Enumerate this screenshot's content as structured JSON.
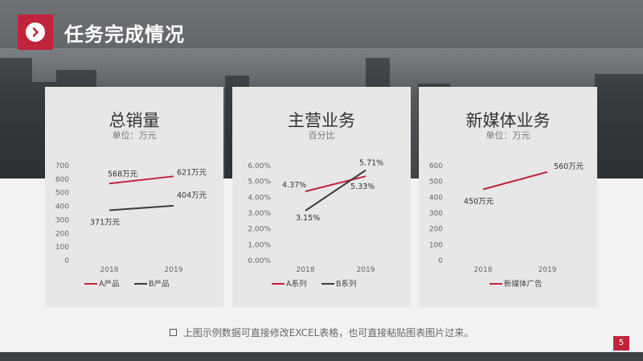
{
  "header": {
    "title": "任务完成情况"
  },
  "note": "上图示例数据可直接修改EXCEL表格，也可直接粘贴图表图片过来。",
  "page_number": "5",
  "colors": {
    "accent": "#c0243a",
    "dark": "#3c4146",
    "card": "#e7e7e7",
    "series_a": "#c0243a",
    "series_b": "#3a3a3a"
  },
  "chart_data": [
    {
      "type": "line",
      "title": "总销量",
      "subtitle": "单位：万元",
      "categories": [
        "2018",
        "2019"
      ],
      "yticks": [
        "0",
        "100",
        "200",
        "300",
        "400",
        "500",
        "600",
        "700"
      ],
      "ylim": [
        0,
        700
      ],
      "series": [
        {
          "name": "A产品",
          "values": [
            568,
            621
          ],
          "labels": [
            "568万元",
            "621万元"
          ]
        },
        {
          "name": "B产品",
          "values": [
            371,
            404
          ],
          "labels": [
            "371万元",
            "404万元"
          ]
        }
      ]
    },
    {
      "type": "line",
      "title": "主营业务",
      "subtitle": "百分比",
      "categories": [
        "2018",
        "2019"
      ],
      "yticks": [
        "0.00%",
        "1.00%",
        "2.00%",
        "3.00%",
        "4.00%",
        "5.00%",
        "6.00%"
      ],
      "ylim": [
        0,
        6
      ],
      "series": [
        {
          "name": "A系列",
          "values": [
            4.37,
            5.33
          ],
          "labels": [
            "4.37%",
            "5.33%"
          ]
        },
        {
          "name": "B系列",
          "values": [
            3.15,
            5.71
          ],
          "labels": [
            "3.15%",
            "5.71%"
          ]
        }
      ]
    },
    {
      "type": "line",
      "title": "新媒体业务",
      "subtitle": "单位：万元",
      "categories": [
        "2018",
        "2019"
      ],
      "yticks": [
        "0",
        "100",
        "200",
        "300",
        "400",
        "500",
        "600"
      ],
      "ylim": [
        0,
        600
      ],
      "series": [
        {
          "name": "新媒体广告",
          "values": [
            450,
            560
          ],
          "labels": [
            "450万元",
            "560万元"
          ]
        }
      ]
    }
  ]
}
